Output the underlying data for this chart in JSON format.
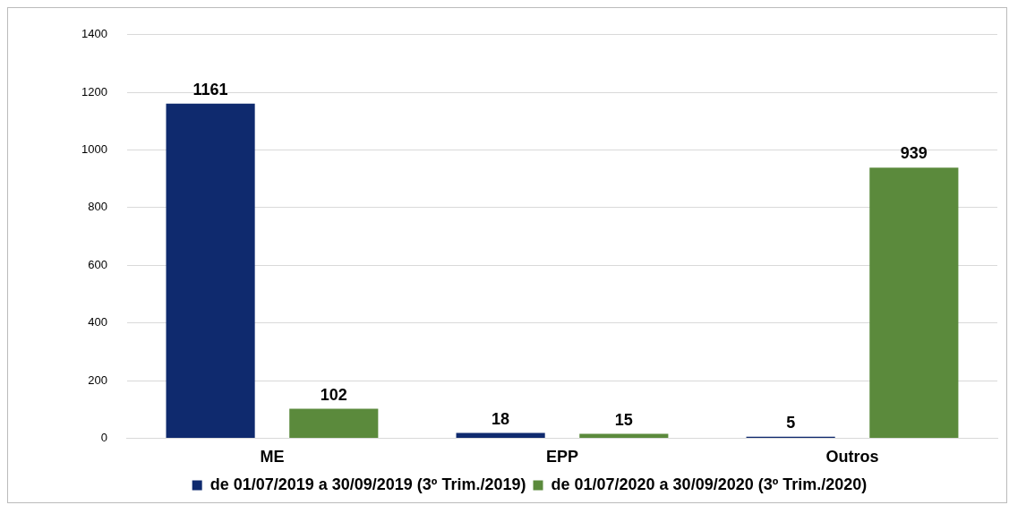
{
  "chart_data": {
    "type": "bar",
    "categories": [
      "ME",
      "EPP",
      "Outros"
    ],
    "series": [
      {
        "name": "de 01/07/2019 a 30/09/2019 (3º Trim./2019)",
        "color": "#0f2a6e",
        "values": [
          1161,
          18,
          5
        ]
      },
      {
        "name": "de 01/07/2020 a 30/09/2020 (3º Trim./2020)",
        "color": "#5b8a3c",
        "values": [
          102,
          15,
          939
        ]
      }
    ],
    "ylim": [
      0,
      1400
    ],
    "yticks": [
      0,
      200,
      400,
      600,
      800,
      1000,
      1200,
      1400
    ],
    "grid": "y",
    "legend": "bottom",
    "data_labels": true
  }
}
